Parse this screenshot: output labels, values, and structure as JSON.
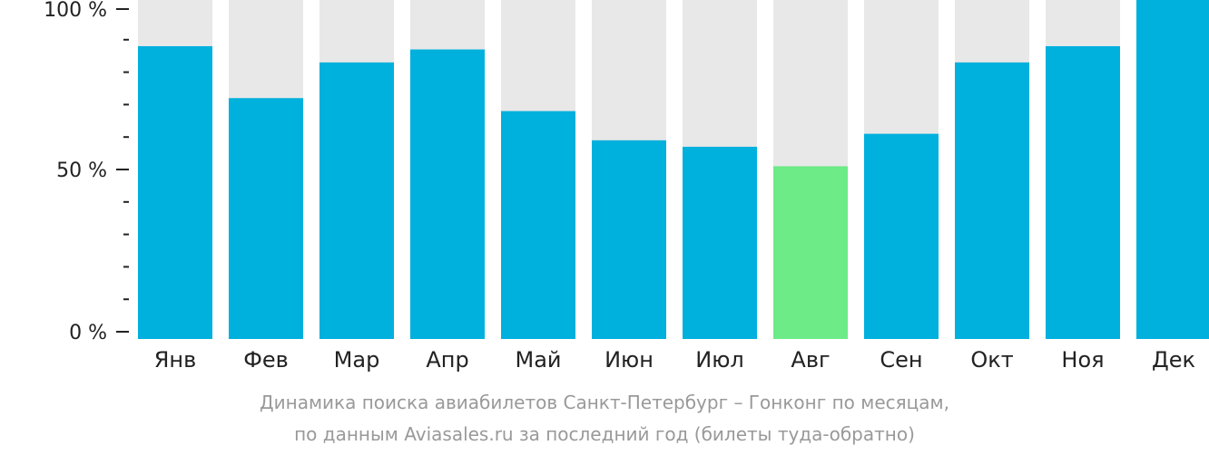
{
  "chart_data": {
    "type": "bar",
    "categories": [
      "Янв",
      "Фев",
      "Мар",
      "Апр",
      "Май",
      "Июн",
      "Июл",
      "Авг",
      "Сен",
      "Окт",
      "Ноя",
      "Дек"
    ],
    "values": [
      88,
      72,
      83,
      87,
      68,
      59,
      57,
      51,
      61,
      83,
      88,
      100
    ],
    "ylim": [
      0,
      100
    ],
    "y_ticks": [
      {
        "value": 0,
        "label": "0 %"
      },
      {
        "value": 50,
        "label": "50 %"
      },
      {
        "value": 100,
        "label": "100 %"
      }
    ],
    "y_minor_tick_step": 10,
    "highlight_index": 7,
    "colors": {
      "bar": "#00b0dd",
      "bar_highlight": "#6ceb86",
      "bar_background": "#e8e8e8",
      "axis": "#222222",
      "caption": "#999999"
    },
    "grid": false,
    "legend": "none"
  },
  "caption": {
    "line1": "Динамика поиска авиабилетов Санкт-Петербург – Гонконг по месяцам,",
    "line2": "по данным Aviasales.ru за последний год (билеты туда-обратно)"
  }
}
